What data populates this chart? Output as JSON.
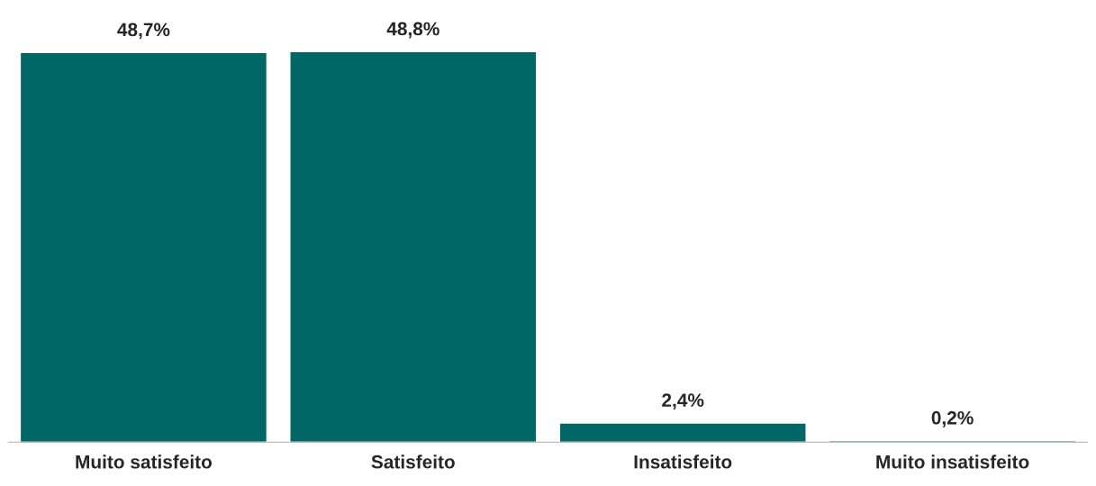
{
  "chart_data": {
    "type": "bar",
    "categories": [
      "Muito satisfeito",
      "Satisfeito",
      "Insatisfeito",
      "Muito insatisfeito"
    ],
    "values": [
      48.7,
      48.8,
      2.4,
      0.2
    ],
    "value_labels": [
      "48,7%",
      "48,8%",
      "2,4%",
      "0,2%"
    ],
    "color": "#006666",
    "grid": false,
    "legend": false
  }
}
